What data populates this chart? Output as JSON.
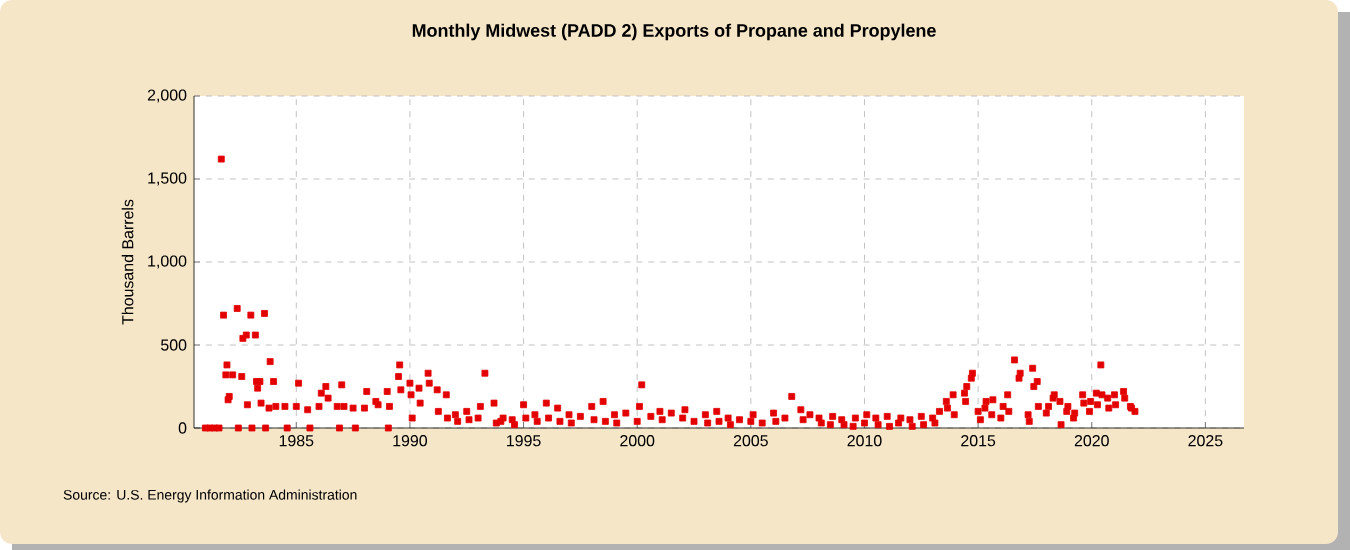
{
  "chart_data": {
    "type": "scatter",
    "title": "Monthly Midwest (PADD 2) Exports of Propane and Propylene",
    "ylabel": "Thousand Barrels",
    "annotations": [
      "Source: U.S. Energy Information Administration"
    ],
    "x": [
      1981.0,
      1981.2,
      1981.4,
      1981.6,
      1981.7,
      1981.8,
      1981.9,
      1981.95,
      1982.0,
      1982.05,
      1982.2,
      1982.4,
      1982.45,
      1982.6,
      1982.65,
      1982.8,
      1982.85,
      1983.0,
      1983.05,
      1983.2,
      1983.25,
      1983.3,
      1983.4,
      1983.45,
      1983.6,
      1983.65,
      1983.8,
      1983.85,
      1984.0,
      1984.1,
      1984.5,
      1984.6,
      1985.0,
      1985.1,
      1985.5,
      1985.6,
      1986.0,
      1986.1,
      1986.3,
      1986.4,
      1986.8,
      1986.9,
      1987.0,
      1987.1,
      1987.5,
      1987.6,
      1988.0,
      1988.1,
      1988.5,
      1988.6,
      1989.0,
      1989.05,
      1989.1,
      1989.5,
      1989.55,
      1989.6,
      1990.0,
      1990.05,
      1990.1,
      1990.4,
      1990.45,
      1990.8,
      1990.85,
      1991.2,
      1991.25,
      1991.6,
      1991.65,
      1992.0,
      1992.1,
      1992.5,
      1992.6,
      1993.0,
      1993.1,
      1993.3,
      1993.7,
      1993.8,
      1994.0,
      1994.1,
      1994.5,
      1994.6,
      1995.0,
      1995.1,
      1995.5,
      1995.6,
      1996.0,
      1996.1,
      1996.5,
      1996.6,
      1997.0,
      1997.1,
      1997.5,
      1998.0,
      1998.1,
      1998.5,
      1998.6,
      1999.0,
      1999.1,
      1999.5,
      2000.0,
      2000.1,
      2000.2,
      2000.6,
      2001.0,
      2001.1,
      2001.5,
      2002.0,
      2002.1,
      2002.5,
      2003.0,
      2003.1,
      2003.5,
      2003.6,
      2004.0,
      2004.1,
      2004.5,
      2005.0,
      2005.1,
      2005.5,
      2006.0,
      2006.1,
      2006.5,
      2006.8,
      2007.2,
      2007.3,
      2007.6,
      2008.0,
      2008.1,
      2008.5,
      2008.6,
      2009.0,
      2009.1,
      2009.5,
      2009.6,
      2010.0,
      2010.1,
      2010.5,
      2010.6,
      2011.0,
      2011.1,
      2011.5,
      2011.6,
      2012.0,
      2012.1,
      2012.5,
      2012.6,
      2013.0,
      2013.1,
      2013.3,
      2013.6,
      2013.65,
      2013.9,
      2013.95,
      2014.4,
      2014.45,
      2014.5,
      2014.7,
      2014.75,
      2015.0,
      2015.1,
      2015.3,
      2015.35,
      2015.6,
      2015.65,
      2016.0,
      2016.1,
      2016.3,
      2016.35,
      2016.6,
      2016.8,
      2016.85,
      2017.2,
      2017.25,
      2017.4,
      2017.45,
      2017.6,
      2017.65,
      2018.0,
      2018.1,
      2018.3,
      2018.35,
      2018.6,
      2018.65,
      2018.9,
      2018.95,
      2019.2,
      2019.25,
      2019.6,
      2019.65,
      2019.9,
      2019.95,
      2020.2,
      2020.25,
      2020.4,
      2020.45,
      2020.7,
      2020.75,
      2021.0,
      2021.05,
      2021.4,
      2021.45,
      2021.7,
      2021.75,
      2021.9
    ],
    "values": [
      0,
      0,
      0,
      0,
      1620,
      680,
      320,
      380,
      170,
      190,
      320,
      720,
      0,
      310,
      540,
      560,
      140,
      680,
      0,
      560,
      280,
      240,
      280,
      150,
      690,
      0,
      120,
      400,
      280,
      130,
      130,
      0,
      130,
      270,
      110,
      0,
      130,
      210,
      250,
      180,
      130,
      0,
      260,
      130,
      120,
      0,
      120,
      220,
      160,
      140,
      220,
      0,
      130,
      310,
      380,
      230,
      270,
      200,
      60,
      240,
      150,
      330,
      270,
      230,
      100,
      200,
      60,
      80,
      40,
      100,
      50,
      60,
      130,
      330,
      150,
      30,
      40,
      60,
      50,
      20,
      140,
      60,
      80,
      40,
      150,
      60,
      120,
      40,
      80,
      30,
      70,
      130,
      50,
      160,
      40,
      80,
      30,
      90,
      40,
      130,
      260,
      70,
      100,
      50,
      90,
      60,
      110,
      40,
      80,
      30,
      100,
      40,
      60,
      20,
      50,
      40,
      80,
      30,
      90,
      40,
      60,
      190,
      110,
      50,
      80,
      60,
      30,
      20,
      70,
      50,
      20,
      10,
      60,
      30,
      80,
      60,
      20,
      70,
      10,
      30,
      60,
      50,
      10,
      70,
      20,
      60,
      30,
      100,
      160,
      120,
      200,
      80,
      210,
      160,
      250,
      300,
      330,
      100,
      50,
      120,
      160,
      80,
      170,
      60,
      130,
      200,
      100,
      410,
      300,
      330,
      80,
      40,
      360,
      250,
      280,
      130,
      90,
      130,
      180,
      200,
      160,
      20,
      100,
      130,
      60,
      90,
      200,
      150,
      100,
      160,
      210,
      140,
      380,
      200,
      180,
      120,
      200,
      140,
      220,
      180,
      130,
      120,
      100
    ],
    "color": "#e30000",
    "marker": "square",
    "xlim": [
      1980.5,
      2026.7
    ],
    "xticks": [
      1985,
      1990,
      1995,
      2000,
      2005,
      2010,
      2015,
      2020,
      2025
    ],
    "ylim": [
      0,
      2000
    ],
    "yticks": [
      {
        "value": 0,
        "label": "0"
      },
      {
        "value": 500,
        "label": "500"
      },
      {
        "value": 1000,
        "label": "1,000"
      },
      {
        "value": 1500,
        "label": "1,500"
      },
      {
        "value": 2000,
        "label": "2,000"
      }
    ],
    "grid": true
  }
}
